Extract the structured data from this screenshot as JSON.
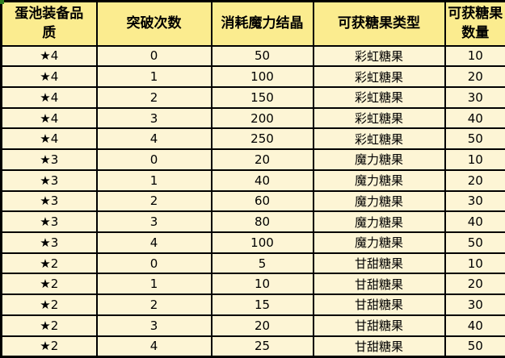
{
  "colors": {
    "header_bg": "#FBEC8F",
    "body_bg": "#FDF5D5",
    "border": "#000000",
    "text": "#000000",
    "corner_artifact": "#2E7D1F"
  },
  "table": {
    "columns": [
      "蛋池装备品质",
      "突破次数",
      "消耗魔力结晶",
      "可获糖果类型",
      "可获糖果数量"
    ],
    "rows": [
      [
        "★4",
        "0",
        "50",
        "彩虹糖果",
        "10"
      ],
      [
        "★4",
        "1",
        "100",
        "彩虹糖果",
        "20"
      ],
      [
        "★4",
        "2",
        "150",
        "彩虹糖果",
        "30"
      ],
      [
        "★4",
        "3",
        "200",
        "彩虹糖果",
        "40"
      ],
      [
        "★4",
        "4",
        "250",
        "彩虹糖果",
        "50"
      ],
      [
        "★3",
        "0",
        "20",
        "魔力糖果",
        "10"
      ],
      [
        "★3",
        "1",
        "40",
        "魔力糖果",
        "20"
      ],
      [
        "★3",
        "2",
        "60",
        "魔力糖果",
        "30"
      ],
      [
        "★3",
        "3",
        "80",
        "魔力糖果",
        "40"
      ],
      [
        "★3",
        "4",
        "100",
        "魔力糖果",
        "50"
      ],
      [
        "★2",
        "0",
        "5",
        "甘甜糖果",
        "10"
      ],
      [
        "★2",
        "1",
        "10",
        "甘甜糖果",
        "20"
      ],
      [
        "★2",
        "2",
        "15",
        "甘甜糖果",
        "30"
      ],
      [
        "★2",
        "3",
        "20",
        "甘甜糖果",
        "40"
      ],
      [
        "★2",
        "4",
        "25",
        "甘甜糖果",
        "50"
      ]
    ]
  }
}
